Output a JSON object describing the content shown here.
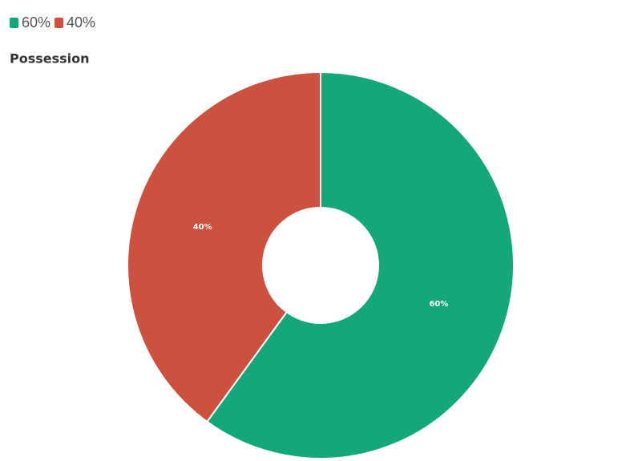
{
  "chart_data": {
    "type": "donut",
    "title": "Possession",
    "categories": [
      "60%",
      "40%"
    ],
    "values": [
      60,
      40
    ],
    "value_labels": [
      "60%",
      "40%"
    ],
    "colors": [
      "#14a77a",
      "#cc513f"
    ],
    "legend": "top-left"
  }
}
